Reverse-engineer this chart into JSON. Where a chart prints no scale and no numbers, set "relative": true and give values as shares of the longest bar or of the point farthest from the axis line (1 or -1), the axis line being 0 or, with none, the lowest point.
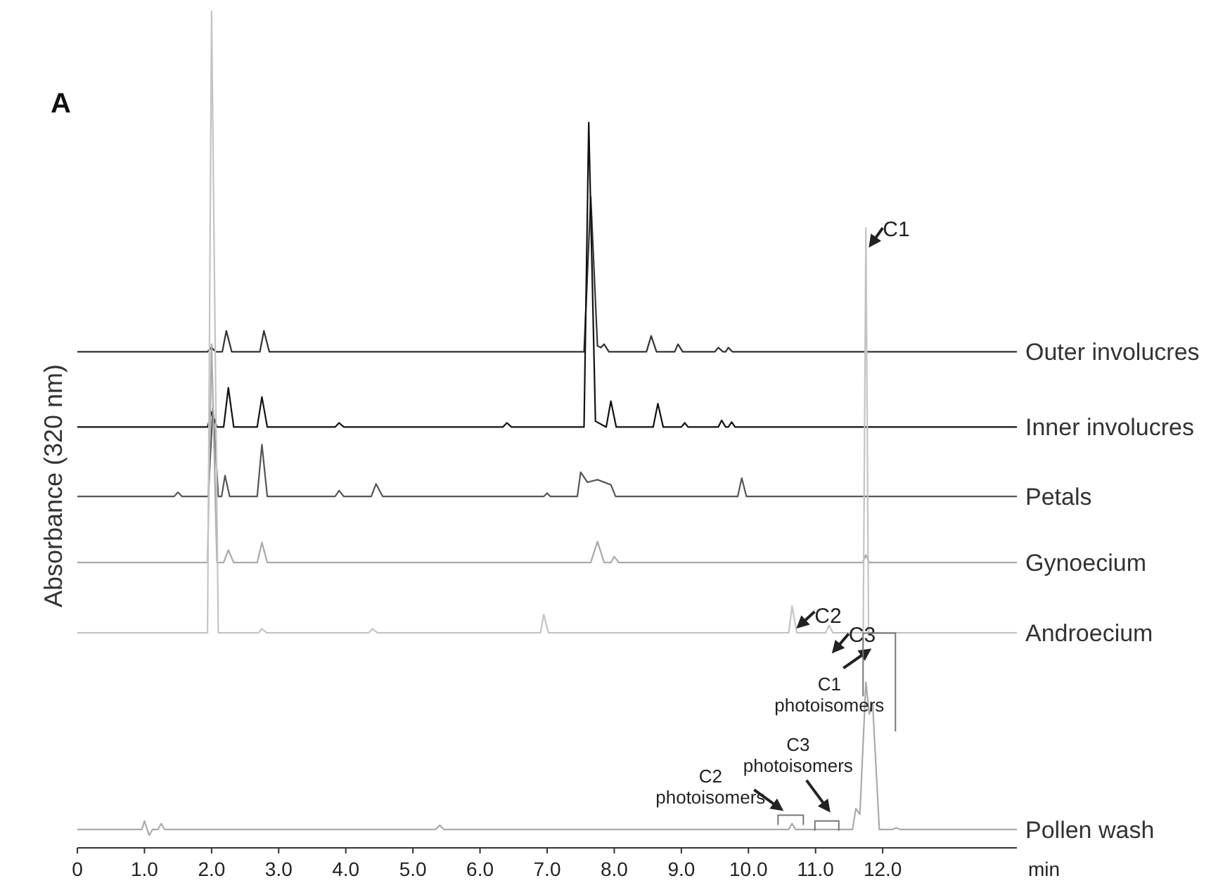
{
  "chart_data": {
    "type": "line",
    "relative": true,
    "ylabel": "Absorbance (320 nm)",
    "xlabel": "min",
    "xlim": [
      0,
      14
    ],
    "xticks": [
      0,
      {
        "value": 1,
        "label": "1.0"
      },
      {
        "value": 2,
        "label": "2.0"
      },
      {
        "value": 3,
        "label": "3.0"
      },
      {
        "value": 4,
        "label": "4.0"
      },
      {
        "value": 5,
        "label": "5.0"
      },
      {
        "value": 6,
        "label": "6.0"
      },
      {
        "value": 7,
        "label": "7.0"
      },
      {
        "value": 8,
        "label": "8.0"
      },
      {
        "value": 9,
        "label": "9.0"
      },
      {
        "value": 10,
        "label": "10.0"
      },
      {
        "value": 11,
        "label": "11.0"
      },
      {
        "value": 12,
        "label": "12.0"
      }
    ],
    "legend": false,
    "marker": "none",
    "line_style": "solid",
    "series": [
      {
        "name": "Outer involucres",
        "color": "#333333",
        "x": [
          0,
          1.94,
          2.0,
          2.06,
          2.16,
          2.22,
          2.3,
          2.72,
          2.78,
          2.86,
          7.55,
          7.65,
          7.75,
          7.8,
          7.85,
          7.92,
          8.48,
          8.55,
          8.63,
          8.9,
          8.95,
          9.02,
          9.5,
          9.55,
          9.62,
          9.66,
          9.7,
          9.76,
          14
        ],
        "values": [
          0.593,
          0.593,
          0.598,
          0.593,
          0.593,
          0.618,
          0.593,
          0.593,
          0.618,
          0.593,
          0.593,
          0.778,
          0.6,
          0.598,
          0.602,
          0.593,
          0.593,
          0.612,
          0.593,
          0.593,
          0.602,
          0.593,
          0.593,
          0.598,
          0.593,
          0.593,
          0.598,
          0.593,
          0.593
        ]
      },
      {
        "name": "Inner involucres",
        "color": "#111111",
        "x": [
          0,
          1.94,
          2.0,
          2.08,
          2.18,
          2.25,
          2.33,
          2.68,
          2.75,
          2.83,
          3.84,
          3.9,
          3.97,
          6.34,
          6.4,
          6.47,
          7.55,
          7.62,
          7.72,
          7.88,
          7.95,
          8.03,
          8.58,
          8.65,
          8.73,
          9.0,
          9.05,
          9.1,
          9.55,
          9.6,
          9.66,
          9.7,
          9.75,
          9.8,
          14
        ],
        "values": [
          0.503,
          0.503,
          0.521,
          0.503,
          0.503,
          0.55,
          0.503,
          0.503,
          0.539,
          0.503,
          0.503,
          0.508,
          0.503,
          0.503,
          0.508,
          0.503,
          0.503,
          0.867,
          0.51,
          0.503,
          0.534,
          0.503,
          0.503,
          0.531,
          0.503,
          0.503,
          0.508,
          0.503,
          0.503,
          0.511,
          0.503,
          0.503,
          0.509,
          0.503,
          0.503
        ]
      },
      {
        "name": "Petals",
        "color": "#555555",
        "x": [
          0,
          1.44,
          1.5,
          1.56,
          1.95,
          2.02,
          2.1,
          2.15,
          2.2,
          2.27,
          2.68,
          2.75,
          2.83,
          3.84,
          3.9,
          3.97,
          4.38,
          4.45,
          4.55,
          6.95,
          7.0,
          7.05,
          7.45,
          7.5,
          7.6,
          7.75,
          7.95,
          8.02,
          9.84,
          9.9,
          9.97,
          14
        ],
        "values": [
          0.42,
          0.42,
          0.425,
          0.42,
          0.42,
          0.526,
          0.42,
          0.42,
          0.445,
          0.42,
          0.42,
          0.482,
          0.42,
          0.42,
          0.427,
          0.42,
          0.42,
          0.435,
          0.42,
          0.42,
          0.424,
          0.42,
          0.42,
          0.449,
          0.437,
          0.44,
          0.434,
          0.42,
          0.42,
          0.442,
          0.42,
          0.42
        ]
      },
      {
        "name": "Gynoecium",
        "color": "#aaaaaa",
        "x": [
          0,
          1.94,
          2.0,
          2.08,
          2.18,
          2.25,
          2.33,
          2.68,
          2.75,
          2.83,
          7.65,
          7.75,
          7.85,
          7.95,
          8.0,
          8.07,
          11.7,
          11.75,
          11.8,
          14
        ],
        "values": [
          0.341,
          0.341,
          0.602,
          0.341,
          0.341,
          0.356,
          0.341,
          0.341,
          0.365,
          0.341,
          0.341,
          0.366,
          0.341,
          0.341,
          0.348,
          0.341,
          0.341,
          0.35,
          0.341,
          0.341
        ]
      },
      {
        "name": "Androecium",
        "color": "#c4c4c4",
        "x": [
          0,
          1.94,
          2.0,
          2.1,
          2.7,
          2.75,
          2.82,
          4.34,
          4.4,
          4.47,
          6.9,
          6.95,
          7.02,
          10.6,
          10.65,
          10.72,
          11.15,
          11.2,
          11.26,
          11.71,
          11.75,
          11.79,
          14
        ],
        "values": [
          0.257,
          0.257,
          1,
          0.257,
          0.257,
          0.262,
          0.257,
          0.257,
          0.262,
          0.257,
          0.257,
          0.279,
          0.257,
          0.257,
          0.289,
          0.257,
          0.257,
          0.266,
          0.257,
          0.257,
          0.741,
          0.257,
          0.257
        ]
      },
      {
        "name": "Pollen wash",
        "color": "#aaaaaa",
        "x": [
          0,
          0.96,
          1.0,
          1.07,
          1.12,
          1.2,
          1.25,
          1.3,
          5.34,
          5.4,
          5.46,
          10.6,
          10.65,
          10.7,
          11.55,
          11.6,
          11.66,
          11.75,
          11.8,
          11.85,
          11.95,
          12.15,
          12.2,
          12.26,
          14
        ],
        "values": [
          0.022,
          0.022,
          0.032,
          0.015,
          0.022,
          0.022,
          0.029,
          0.022,
          0.022,
          0.027,
          0.022,
          0.022,
          0.029,
          0.022,
          0.022,
          0.047,
          0.04,
          0.198,
          0.16,
          0.173,
          0.022,
          0.022,
          0.024,
          0.022,
          0.022
        ]
      }
    ],
    "annotations": [
      "A",
      {
        "text": "C1",
        "x": 11.75,
        "y": 0.741
      },
      {
        "text": "C2",
        "x": 10.65,
        "y": 0.289
      },
      {
        "text": "C3",
        "x": 11.2,
        "y": 0.266
      },
      {
        "text": "C1 photoisomers",
        "x": 11.75,
        "y": 0.198
      },
      {
        "text": "C2 photoisomers",
        "x": 10.65,
        "y": 0.029
      },
      {
        "text": "C3 photoisomers",
        "x": 11.2,
        "y": 0.022
      }
    ]
  }
}
